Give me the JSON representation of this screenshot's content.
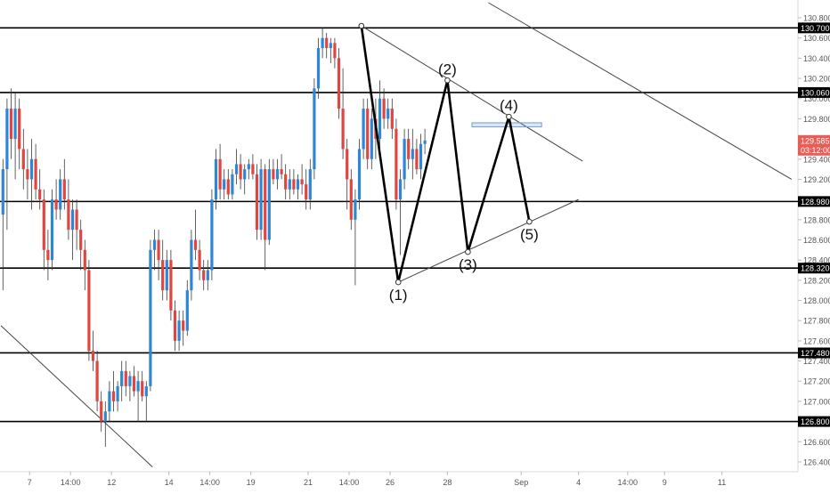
{
  "colors": {
    "up": "#2e86d6",
    "down": "#e0463f",
    "wick": "#3b3b3b",
    "level_line": "#000000",
    "trend_line": "#444444",
    "pattern_line": "#000000",
    "price_badge": "#e85d58",
    "level_badge": "#000000",
    "badge_text": "#ffffff",
    "axis_text": "#555555",
    "resistance_box": "#6f9fd8"
  },
  "chart_data": {
    "type": "candlestick",
    "title": "",
    "xlabel": "",
    "ylabel": "",
    "ylim": [
      126.32,
      130.95
    ],
    "y_ticks": [
      126.4,
      126.6,
      126.8,
      127.0,
      127.2,
      127.4,
      127.6,
      127.8,
      128.0,
      128.2,
      128.4,
      128.6,
      128.8,
      129.0,
      129.2,
      129.4,
      129.6,
      129.8,
      130.0,
      130.2,
      130.4,
      130.6,
      130.8
    ],
    "y_tick_labels": [
      "126.400",
      "126.600",
      "126.800",
      "127.000",
      "127.200",
      "127.400",
      "127.600",
      "127.800",
      "128.000",
      "128.200",
      "128.400",
      "128.600",
      "128.800",
      "129.000",
      "129.200",
      "129.400",
      "129.600",
      "129.800",
      "130.000",
      "130.200",
      "130.400",
      "130.600",
      "130.800"
    ],
    "x_tick_labels": [
      {
        "label": "7",
        "bar": 7
      },
      {
        "label": "14:00",
        "bar": 17
      },
      {
        "label": "12",
        "bar": 27
      },
      {
        "label": "14",
        "bar": 41
      },
      {
        "label": "14:00",
        "bar": 51
      },
      {
        "label": "19",
        "bar": 61
      },
      {
        "label": "21",
        "bar": 75
      },
      {
        "label": "14:00",
        "bar": 85
      },
      {
        "label": "26",
        "bar": 95
      },
      {
        "label": "28",
        "bar": 109
      },
      {
        "label": "Sep",
        "bar": 127
      },
      {
        "label": "4",
        "bar": 141
      },
      {
        "label": "14:00",
        "bar": 153
      },
      {
        "label": "9",
        "bar": 162
      },
      {
        "label": "11",
        "bar": 176
      }
    ],
    "horizontal_levels": [
      {
        "price": 130.7,
        "label": "130.700"
      },
      {
        "price": 130.06,
        "label": "130.060"
      },
      {
        "price": 128.98,
        "label": "128.980"
      },
      {
        "price": 128.32,
        "label": "128.320"
      },
      {
        "price": 127.48,
        "label": "127.480"
      },
      {
        "price": 126.8,
        "label": "126.800"
      }
    ],
    "current_price": {
      "price": 129.585,
      "label": "129.585",
      "countdown": "03:12:00"
    },
    "candles": [
      {
        "o": 128.85,
        "h": 129.4,
        "l": 128.1,
        "c": 129.3
      },
      {
        "o": 129.3,
        "h": 130.0,
        "l": 128.7,
        "c": 129.9
      },
      {
        "o": 129.9,
        "h": 130.1,
        "l": 129.4,
        "c": 129.6
      },
      {
        "o": 129.6,
        "h": 130.05,
        "l": 129.2,
        "c": 129.9
      },
      {
        "o": 129.9,
        "h": 130.0,
        "l": 129.3,
        "c": 129.5
      },
      {
        "o": 129.5,
        "h": 129.7,
        "l": 129.1,
        "c": 129.3
      },
      {
        "o": 129.3,
        "h": 129.5,
        "l": 129.0,
        "c": 129.2
      },
      {
        "o": 129.2,
        "h": 129.6,
        "l": 128.9,
        "c": 129.4
      },
      {
        "o": 129.4,
        "h": 129.55,
        "l": 129.0,
        "c": 129.1
      },
      {
        "o": 129.1,
        "h": 129.3,
        "l": 128.9,
        "c": 129.0
      },
      {
        "o": 129.0,
        "h": 129.1,
        "l": 128.3,
        "c": 128.5
      },
      {
        "o": 128.5,
        "h": 128.7,
        "l": 128.2,
        "c": 128.4
      },
      {
        "o": 128.4,
        "h": 129.1,
        "l": 128.3,
        "c": 129.0
      },
      {
        "o": 129.0,
        "h": 129.2,
        "l": 128.8,
        "c": 128.9
      },
      {
        "o": 128.9,
        "h": 129.3,
        "l": 128.8,
        "c": 129.2
      },
      {
        "o": 129.2,
        "h": 129.4,
        "l": 128.9,
        "c": 129.0
      },
      {
        "o": 129.0,
        "h": 129.2,
        "l": 128.6,
        "c": 128.7
      },
      {
        "o": 128.7,
        "h": 129.0,
        "l": 128.4,
        "c": 128.9
      },
      {
        "o": 128.9,
        "h": 129.0,
        "l": 128.5,
        "c": 128.7
      },
      {
        "o": 128.7,
        "h": 128.8,
        "l": 128.3,
        "c": 128.5
      },
      {
        "o": 128.5,
        "h": 128.6,
        "l": 128.1,
        "c": 128.3
      },
      {
        "o": 128.3,
        "h": 128.4,
        "l": 127.4,
        "c": 127.5
      },
      {
        "o": 127.5,
        "h": 127.7,
        "l": 127.3,
        "c": 127.4
      },
      {
        "o": 127.4,
        "h": 127.5,
        "l": 126.9,
        "c": 127.0
      },
      {
        "o": 127.0,
        "h": 127.1,
        "l": 126.7,
        "c": 126.8
      },
      {
        "o": 126.8,
        "h": 127.0,
        "l": 126.55,
        "c": 126.9
      },
      {
        "o": 126.9,
        "h": 127.2,
        "l": 126.8,
        "c": 127.1
      },
      {
        "o": 127.1,
        "h": 127.3,
        "l": 126.9,
        "c": 127.0
      },
      {
        "o": 127.0,
        "h": 127.2,
        "l": 126.9,
        "c": 127.15
      },
      {
        "o": 127.15,
        "h": 127.4,
        "l": 127.0,
        "c": 127.3
      },
      {
        "o": 127.3,
        "h": 127.4,
        "l": 127.05,
        "c": 127.15
      },
      {
        "o": 127.15,
        "h": 127.3,
        "l": 127.0,
        "c": 127.25
      },
      {
        "o": 127.25,
        "h": 127.35,
        "l": 127.05,
        "c": 127.1
      },
      {
        "o": 127.1,
        "h": 127.3,
        "l": 126.8,
        "c": 127.2
      },
      {
        "o": 127.2,
        "h": 127.3,
        "l": 127.0,
        "c": 127.05
      },
      {
        "o": 127.05,
        "h": 127.2,
        "l": 126.8,
        "c": 127.15
      },
      {
        "o": 127.15,
        "h": 128.6,
        "l": 127.1,
        "c": 128.5
      },
      {
        "o": 128.5,
        "h": 128.7,
        "l": 128.3,
        "c": 128.6
      },
      {
        "o": 128.6,
        "h": 128.7,
        "l": 128.2,
        "c": 128.4
      },
      {
        "o": 128.4,
        "h": 128.6,
        "l": 128.0,
        "c": 128.1
      },
      {
        "o": 128.1,
        "h": 128.5,
        "l": 128.0,
        "c": 128.4
      },
      {
        "o": 128.4,
        "h": 128.5,
        "l": 127.8,
        "c": 127.9
      },
      {
        "o": 127.9,
        "h": 128.0,
        "l": 127.5,
        "c": 127.6
      },
      {
        "o": 127.6,
        "h": 127.9,
        "l": 127.5,
        "c": 127.8
      },
      {
        "o": 127.8,
        "h": 127.9,
        "l": 127.55,
        "c": 127.7
      },
      {
        "o": 127.7,
        "h": 128.2,
        "l": 127.65,
        "c": 128.1
      },
      {
        "o": 128.1,
        "h": 128.7,
        "l": 128.0,
        "c": 128.6
      },
      {
        "o": 128.6,
        "h": 128.9,
        "l": 128.4,
        "c": 128.5
      },
      {
        "o": 128.5,
        "h": 128.6,
        "l": 128.2,
        "c": 128.3
      },
      {
        "o": 128.3,
        "h": 128.4,
        "l": 128.1,
        "c": 128.2
      },
      {
        "o": 128.2,
        "h": 128.4,
        "l": 128.1,
        "c": 128.3
      },
      {
        "o": 128.3,
        "h": 129.1,
        "l": 128.2,
        "c": 129.0
      },
      {
        "o": 129.0,
        "h": 129.5,
        "l": 128.9,
        "c": 129.4
      },
      {
        "o": 129.4,
        "h": 129.55,
        "l": 129.0,
        "c": 129.1
      },
      {
        "o": 129.1,
        "h": 129.3,
        "l": 129.0,
        "c": 129.2
      },
      {
        "o": 129.2,
        "h": 129.3,
        "l": 129.0,
        "c": 129.05
      },
      {
        "o": 129.05,
        "h": 129.3,
        "l": 129.0,
        "c": 129.25
      },
      {
        "o": 129.25,
        "h": 129.5,
        "l": 129.15,
        "c": 129.35
      },
      {
        "o": 129.35,
        "h": 129.45,
        "l": 129.1,
        "c": 129.2
      },
      {
        "o": 129.2,
        "h": 129.35,
        "l": 129.05,
        "c": 129.3
      },
      {
        "o": 129.3,
        "h": 129.4,
        "l": 129.2,
        "c": 129.35
      },
      {
        "o": 129.35,
        "h": 129.45,
        "l": 129.2,
        "c": 129.25
      },
      {
        "o": 129.25,
        "h": 129.35,
        "l": 128.6,
        "c": 128.7
      },
      {
        "o": 128.7,
        "h": 129.4,
        "l": 128.6,
        "c": 129.3
      },
      {
        "o": 129.3,
        "h": 129.35,
        "l": 128.3,
        "c": 128.6
      },
      {
        "o": 128.6,
        "h": 129.4,
        "l": 128.55,
        "c": 129.3
      },
      {
        "o": 129.3,
        "h": 129.4,
        "l": 129.15,
        "c": 129.2
      },
      {
        "o": 129.2,
        "h": 129.4,
        "l": 129.1,
        "c": 129.3
      },
      {
        "o": 129.3,
        "h": 129.45,
        "l": 129.2,
        "c": 129.25
      },
      {
        "o": 129.25,
        "h": 129.35,
        "l": 129.0,
        "c": 129.1
      },
      {
        "o": 129.1,
        "h": 129.3,
        "l": 129.0,
        "c": 129.2
      },
      {
        "o": 129.2,
        "h": 129.3,
        "l": 129.05,
        "c": 129.1
      },
      {
        "o": 129.1,
        "h": 129.25,
        "l": 129.0,
        "c": 129.2
      },
      {
        "o": 129.2,
        "h": 129.35,
        "l": 129.05,
        "c": 129.15
      },
      {
        "o": 129.15,
        "h": 129.3,
        "l": 128.9,
        "c": 129.0
      },
      {
        "o": 129.0,
        "h": 129.4,
        "l": 128.9,
        "c": 129.3
      },
      {
        "o": 129.3,
        "h": 130.2,
        "l": 129.2,
        "c": 130.1
      },
      {
        "o": 130.1,
        "h": 130.6,
        "l": 130.0,
        "c": 130.5
      },
      {
        "o": 130.5,
        "h": 130.7,
        "l": 130.4,
        "c": 130.6
      },
      {
        "o": 130.6,
        "h": 130.65,
        "l": 130.4,
        "c": 130.5
      },
      {
        "o": 130.5,
        "h": 130.6,
        "l": 130.35,
        "c": 130.55
      },
      {
        "o": 130.55,
        "h": 130.6,
        "l": 130.3,
        "c": 130.4
      },
      {
        "o": 130.4,
        "h": 130.5,
        "l": 129.8,
        "c": 129.9
      },
      {
        "o": 129.9,
        "h": 130.3,
        "l": 129.4,
        "c": 129.5
      },
      {
        "o": 129.5,
        "h": 129.6,
        "l": 128.9,
        "c": 129.2
      },
      {
        "o": 129.2,
        "h": 129.3,
        "l": 128.7,
        "c": 128.8
      },
      {
        "o": 128.8,
        "h": 129.1,
        "l": 128.15,
        "c": 129.0
      },
      {
        "o": 129.0,
        "h": 129.6,
        "l": 128.9,
        "c": 129.5
      },
      {
        "o": 129.5,
        "h": 130.0,
        "l": 129.4,
        "c": 129.9
      },
      {
        "o": 129.9,
        "h": 130.0,
        "l": 129.3,
        "c": 129.4
      },
      {
        "o": 129.4,
        "h": 129.9,
        "l": 129.3,
        "c": 129.8
      },
      {
        "o": 129.8,
        "h": 130.0,
        "l": 129.4,
        "c": 129.6
      },
      {
        "o": 129.6,
        "h": 130.18,
        "l": 129.5,
        "c": 130.0
      },
      {
        "o": 130.0,
        "h": 130.1,
        "l": 129.7,
        "c": 129.8
      },
      {
        "o": 129.8,
        "h": 130.0,
        "l": 129.7,
        "c": 129.9
      },
      {
        "o": 129.9,
        "h": 130.0,
        "l": 129.6,
        "c": 129.7
      },
      {
        "o": 129.7,
        "h": 129.8,
        "l": 128.9,
        "c": 129.0
      },
      {
        "o": 129.0,
        "h": 129.3,
        "l": 128.45,
        "c": 129.2
      },
      {
        "o": 129.2,
        "h": 129.7,
        "l": 129.1,
        "c": 129.6
      },
      {
        "o": 129.6,
        "h": 129.7,
        "l": 129.3,
        "c": 129.4
      },
      {
        "o": 129.4,
        "h": 129.7,
        "l": 129.2,
        "c": 129.5
      },
      {
        "o": 129.5,
        "h": 129.6,
        "l": 129.25,
        "c": 129.3
      },
      {
        "o": 129.3,
        "h": 129.65,
        "l": 129.2,
        "c": 129.55
      },
      {
        "o": 129.55,
        "h": 129.7,
        "l": 129.45,
        "c": 129.585
      }
    ],
    "trendlines": [
      {
        "from": [
          0,
          127.75
        ],
        "to": [
          37,
          126.35
        ]
      },
      {
        "from": [
          88,
          130.72
        ],
        "to": [
          142,
          129.38
        ]
      },
      {
        "from": [
          97,
          128.18
        ],
        "to": [
          141,
          129.0
        ]
      },
      {
        "from": [
          119,
          130.95
        ],
        "to": [
          193,
          129.2
        ]
      }
    ],
    "resistance_box": {
      "from_bar": 115,
      "to_bar": 132,
      "top": 129.76,
      "bottom": 129.72
    },
    "pattern_points": [
      {
        "bar": 88,
        "price": 130.72,
        "label": ""
      },
      {
        "bar": 97,
        "price": 128.18,
        "label": "(1)"
      },
      {
        "bar": 109,
        "price": 130.18,
        "label": "(2)"
      },
      {
        "bar": 114,
        "price": 128.48,
        "label": "(3)"
      },
      {
        "bar": 124,
        "price": 129.82,
        "label": "(4)"
      },
      {
        "bar": 129,
        "price": 128.78,
        "label": "(5)"
      }
    ]
  }
}
